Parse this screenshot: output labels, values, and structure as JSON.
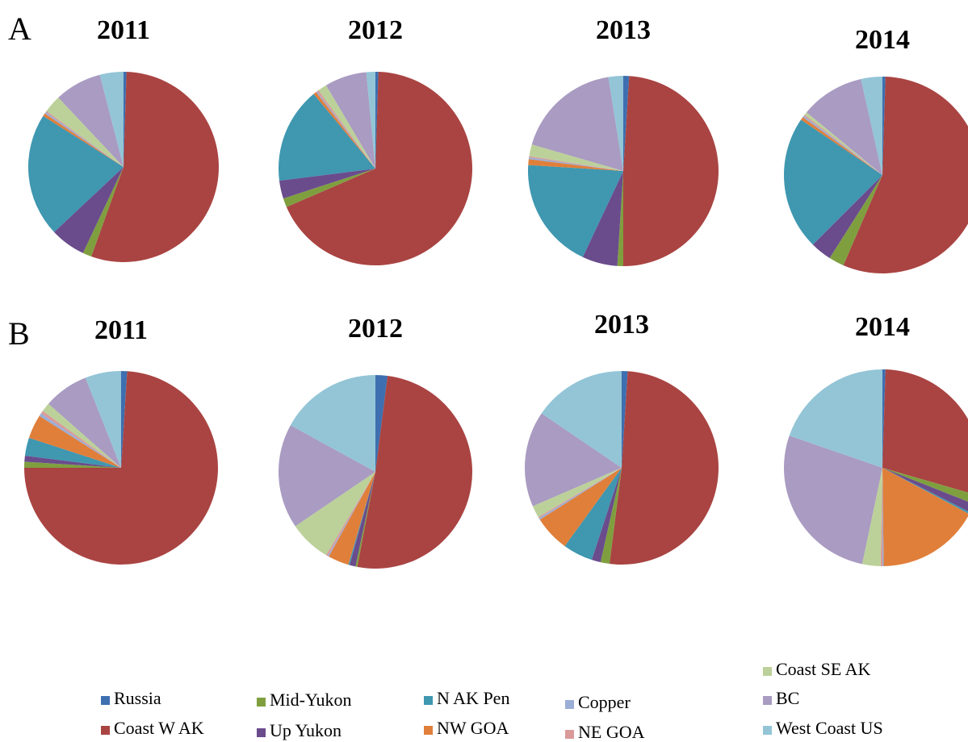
{
  "panel_labels": [
    "A",
    "B"
  ],
  "legend": {
    "categories": [
      "Russia",
      "Coast W AK",
      "Mid-Yukon",
      "Up Yukon",
      "N AK Pen",
      "NW GOA",
      "Copper",
      "NE GOA",
      "Coast SE AK",
      "BC",
      "West Coast US"
    ],
    "colors": [
      "#3e6fb0",
      "#a94442",
      "#7f9f3f",
      "#6a4c8c",
      "#3f97b0",
      "#e07f3a",
      "#9aaed6",
      "#d99a99",
      "#bcd19a",
      "#a99bc1",
      "#93c5d6"
    ]
  },
  "chart_data": [
    {
      "type": "pie",
      "title": "2011",
      "values": [
        0.5,
        55,
        1.5,
        6,
        21,
        0.5,
        0.3,
        0.2,
        3,
        8,
        4
      ]
    },
    {
      "type": "pie",
      "title": "2012",
      "values": [
        0.5,
        68,
        1.5,
        3,
        16,
        0.5,
        0.2,
        0.3,
        1.5,
        7,
        1.5
      ]
    },
    {
      "type": "pie",
      "title": "2013",
      "values": [
        1,
        49,
        1,
        6,
        19,
        1,
        0.3,
        0.2,
        2,
        18,
        2.5
      ]
    },
    {
      "type": "pie",
      "title": "2014",
      "values": [
        0.5,
        56,
        2.5,
        3.5,
        22,
        0.5,
        0.3,
        0.2,
        0.5,
        10.5,
        3.5
      ]
    },
    {
      "type": "pie",
      "title": "2011",
      "values": [
        1,
        74,
        1,
        1,
        3,
        4,
        0.5,
        0.5,
        1.5,
        7.5,
        6
      ]
    },
    {
      "type": "pie",
      "title": "2012",
      "values": [
        2,
        51,
        0.3,
        1,
        0.2,
        3.5,
        0.2,
        0.3,
        7,
        17.5,
        17
      ]
    },
    {
      "type": "pie",
      "title": "2013",
      "values": [
        1,
        51,
        1.5,
        1.5,
        5,
        6,
        0.3,
        0.2,
        2,
        16,
        15.5
      ]
    },
    {
      "type": "pie",
      "title": "2014",
      "values": [
        0.5,
        29,
        1.5,
        1.5,
        0.3,
        17,
        0.2,
        0.3,
        3,
        27,
        19.7
      ]
    }
  ]
}
